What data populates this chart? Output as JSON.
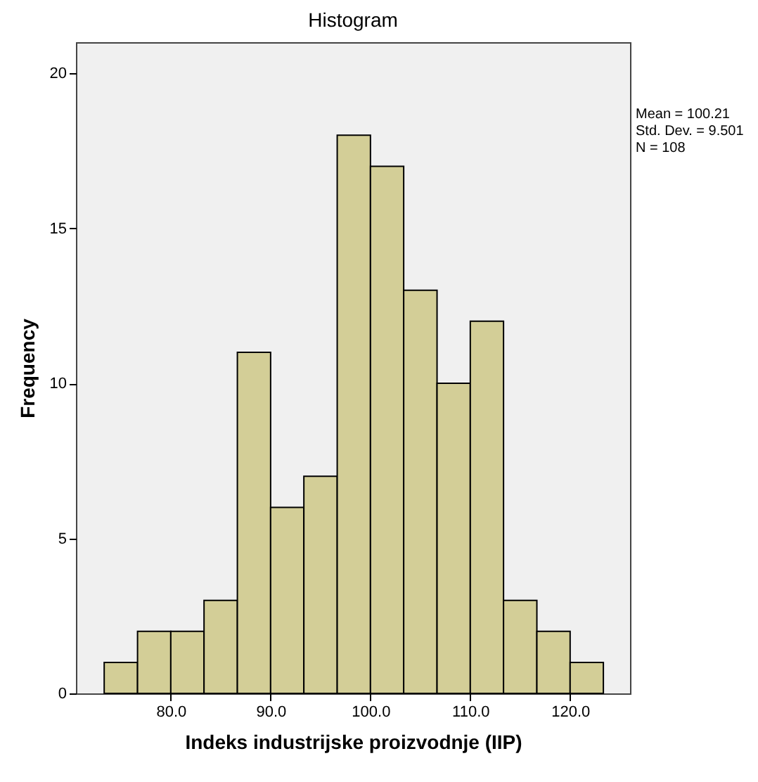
{
  "chart_data": {
    "type": "histogram",
    "title": "Histogram",
    "xlabel": "Indeks industrijske proizvodnje (IIP)",
    "ylabel": "Frequency",
    "bins": [
      73.33,
      76.67,
      80,
      83.33,
      86.67,
      90,
      93.33,
      96.67,
      100,
      103.33,
      106.67,
      110,
      113.33,
      116.67,
      120,
      123.33
    ],
    "values": [
      1,
      2,
      2,
      3,
      11,
      6,
      7,
      18,
      17,
      13,
      10,
      12,
      3,
      2,
      1
    ],
    "color": "#d3ce97",
    "xlim": [
      70.5,
      126
    ],
    "xticks": [
      {
        "value": 80,
        "label": "80.0"
      },
      {
        "value": 90,
        "label": "90.0"
      },
      {
        "value": 100,
        "label": "100.0"
      },
      {
        "value": 110,
        "label": "110.0"
      },
      {
        "value": 120,
        "label": "120.0"
      }
    ],
    "ylim": [
      0,
      21
    ],
    "yticks": [
      0,
      5,
      10,
      15,
      20
    ],
    "grid": false,
    "annotations": [
      "Mean = 100.21",
      "Std. Dev. = 9.501",
      "N = 108"
    ]
  }
}
